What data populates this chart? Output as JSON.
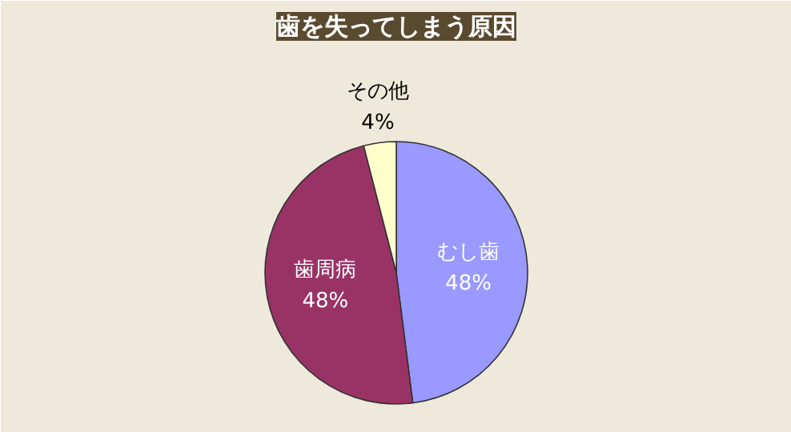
{
  "chart_data": {
    "type": "pie",
    "title": "歯を失ってしまう原因",
    "categories": [
      "むし歯",
      "歯周病",
      "その他"
    ],
    "values": [
      48,
      48,
      4
    ],
    "colors": [
      "#9999ff",
      "#993366",
      "#ffffcc"
    ],
    "value_labels": [
      "48%",
      "48%",
      "4%"
    ]
  }
}
